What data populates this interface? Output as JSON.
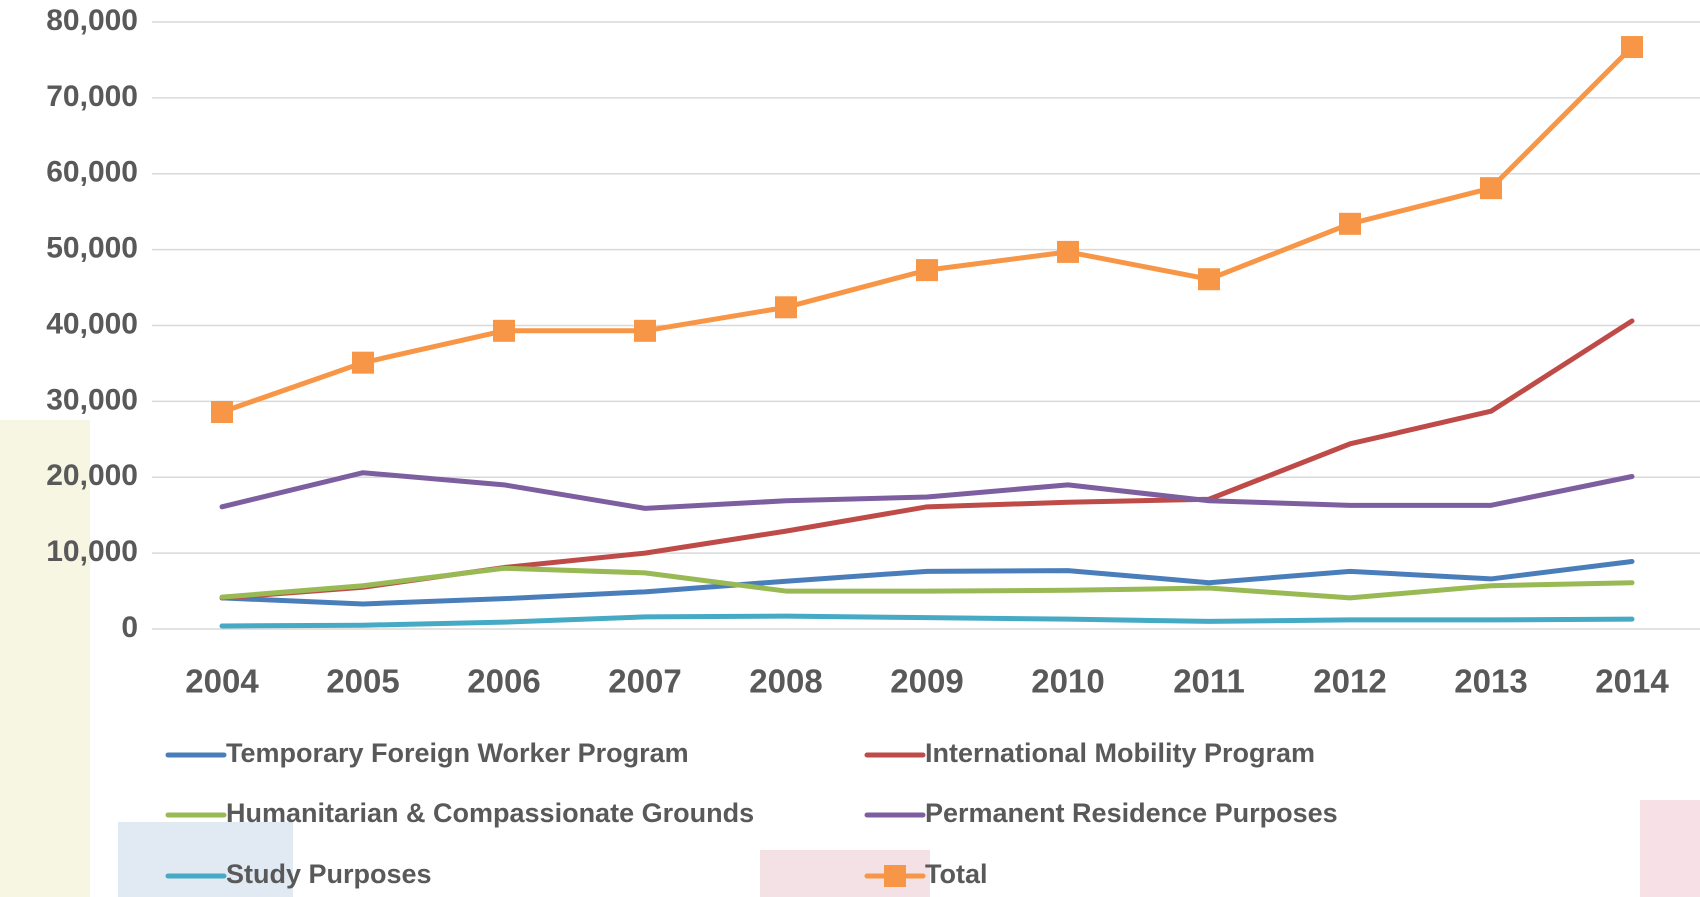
{
  "chart_data": {
    "type": "line",
    "categories": [
      "2004",
      "2005",
      "2006",
      "2007",
      "2008",
      "2009",
      "2010",
      "2011",
      "2012",
      "2013",
      "2014"
    ],
    "series": [
      {
        "name": "Temporary Foreign Worker Program",
        "color": "#4a7ebb",
        "values": [
          4100,
          3300,
          4000,
          4900,
          6300,
          7600,
          7700,
          6100,
          7600,
          6600,
          8900
        ]
      },
      {
        "name": "International Mobility Program",
        "color": "#be4b48",
        "values": [
          4100,
          5500,
          8100,
          10000,
          12900,
          16100,
          16700,
          17100,
          24400,
          28700,
          40600
        ]
      },
      {
        "name": "Humanitarian & Compassionate Grounds",
        "color": "#98b954",
        "values": [
          4200,
          5700,
          8000,
          7400,
          5000,
          5000,
          5100,
          5400,
          4100,
          5700,
          6100
        ]
      },
      {
        "name": "Permanent Residence Purposes",
        "color": "#7d5fa0",
        "values": [
          16100,
          20600,
          19000,
          15900,
          16900,
          17400,
          19000,
          16900,
          16300,
          16300,
          20100
        ]
      },
      {
        "name": "Study Purposes",
        "color": "#46aac5",
        "values": [
          400,
          500,
          900,
          1600,
          1700,
          1500,
          1300,
          1000,
          1200,
          1200,
          1300
        ]
      },
      {
        "name": "Total",
        "color": "#f79646",
        "marker": "square",
        "values": [
          28600,
          35100,
          39300,
          39300,
          42400,
          47300,
          49700,
          46100,
          53400,
          58100,
          76700
        ]
      }
    ],
    "ylim": [
      0,
      80000
    ],
    "yticks": [
      0,
      {
        "value": 10000,
        "label": "10,000"
      },
      {
        "value": 20000,
        "label": "20,000"
      },
      {
        "value": 30000,
        "label": "30,000"
      },
      {
        "value": 40000,
        "label": "40,000"
      },
      {
        "value": 50000,
        "label": "50,000"
      },
      {
        "value": 60000,
        "label": "60,000"
      },
      {
        "value": 70000,
        "label": "70,000"
      },
      {
        "value": 80000,
        "label": "80,000"
      }
    ],
    "grid": true,
    "legend": "bottom"
  }
}
